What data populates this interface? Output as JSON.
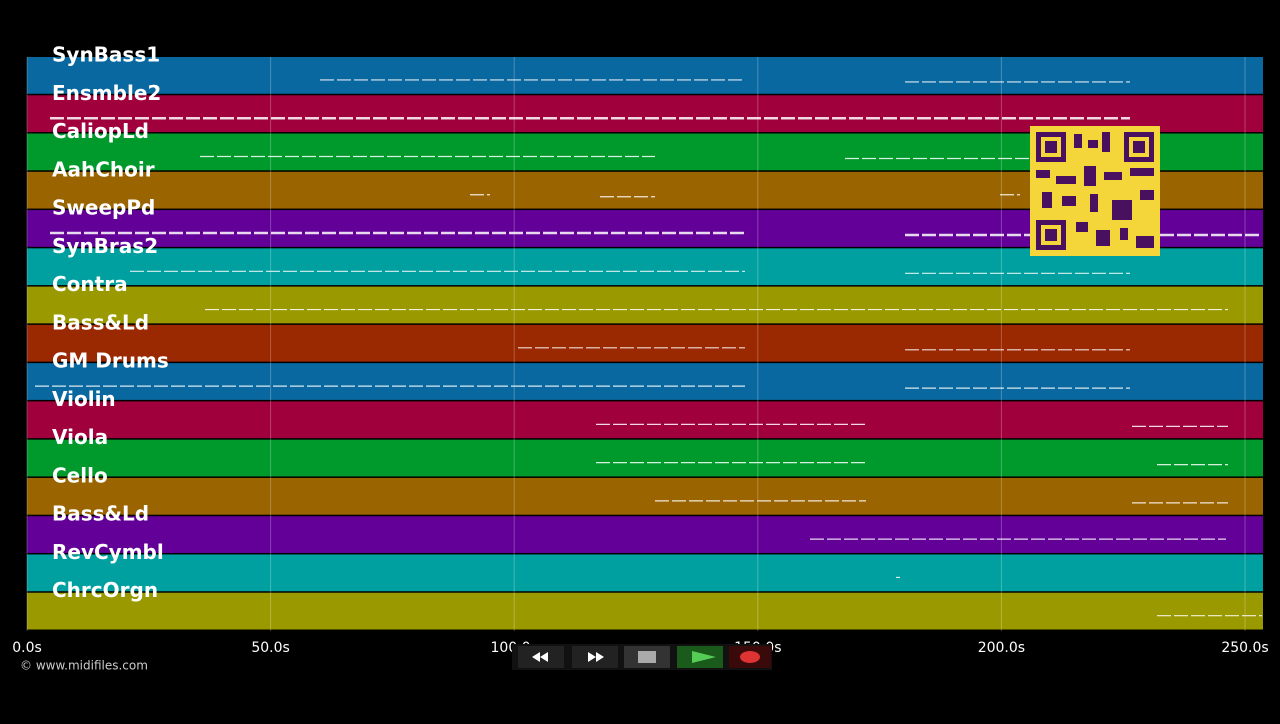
{
  "tracks": [
    "SynBass1",
    "Ensmble2",
    "CaliopLd",
    "AahChoir",
    "SweepPd",
    "SynBras2",
    "Contra",
    "Bass&Ld",
    "GM Drums",
    "Violin",
    "Viola",
    "Cello",
    "Bass&Ld",
    "RevCymbl",
    "ChrcOrgn"
  ],
  "time_axis": [
    "0.0s",
    "50.0s",
    "100.0s",
    "150.0s",
    "200.0s",
    "250.0s"
  ],
  "credit": "© www.midifiles.com"
}
